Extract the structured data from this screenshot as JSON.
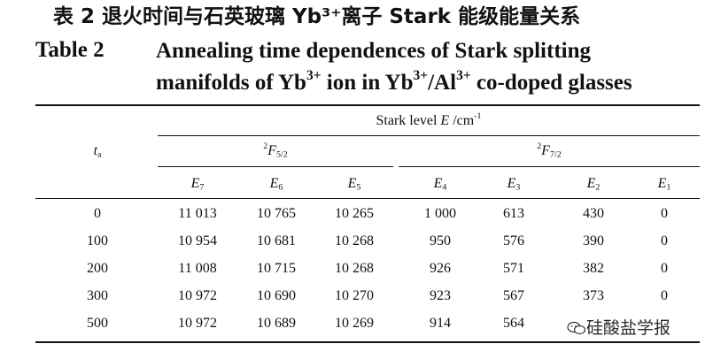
{
  "caption": {
    "cn": "表 2  退火时间与石英玻璃 Yb³⁺离子 Stark 能级能量关系",
    "label": "Table 2",
    "title_line1": "Annealing time dependences of Stark splitting",
    "title_line2_a": "manifolds of Yb",
    "title_line2_b": " ion in Yb",
    "title_line2_c": "/Al",
    "title_line2_d": " co-doped glasses",
    "sup": "3+"
  },
  "table": {
    "stark_header": "Stark level ",
    "stark_symbol": "E",
    "stark_unit": " /cm",
    "stark_unit_sup": "-1",
    "row_header_main": "t",
    "row_header_sub": "a",
    "group1_sup": "2",
    "group1_symbol": "F",
    "group1_sub": "5/2",
    "group2_sup": "2",
    "group2_symbol": "F",
    "group2_sub": "7/2",
    "columns": [
      {
        "symbol": "E",
        "sub": "7"
      },
      {
        "symbol": "E",
        "sub": "6"
      },
      {
        "symbol": "E",
        "sub": "5"
      },
      {
        "symbol": "E",
        "sub": "4"
      },
      {
        "symbol": "E",
        "sub": "3"
      },
      {
        "symbol": "E",
        "sub": "2"
      },
      {
        "symbol": "E",
        "sub": "1"
      }
    ],
    "rows": [
      {
        "t": "0",
        "values": [
          "11 013",
          "10 765",
          "10 265",
          "1 000",
          "613",
          "430",
          "0"
        ]
      },
      {
        "t": "100",
        "values": [
          "10 954",
          "10 681",
          "10 268",
          "950",
          "576",
          "390",
          "0"
        ]
      },
      {
        "t": "200",
        "values": [
          "11 008",
          "10 715",
          "10 268",
          "926",
          "571",
          "382",
          "0"
        ]
      },
      {
        "t": "300",
        "values": [
          "10 972",
          "10 690",
          "10 270",
          "923",
          "567",
          "373",
          "0"
        ]
      },
      {
        "t": "500",
        "values": [
          "10 972",
          "10 689",
          "10 269",
          "914",
          "564",
          "",
          ""
        ]
      }
    ]
  },
  "watermark": {
    "text": "硅酸盐学报",
    "icon": "wechat-icon"
  }
}
